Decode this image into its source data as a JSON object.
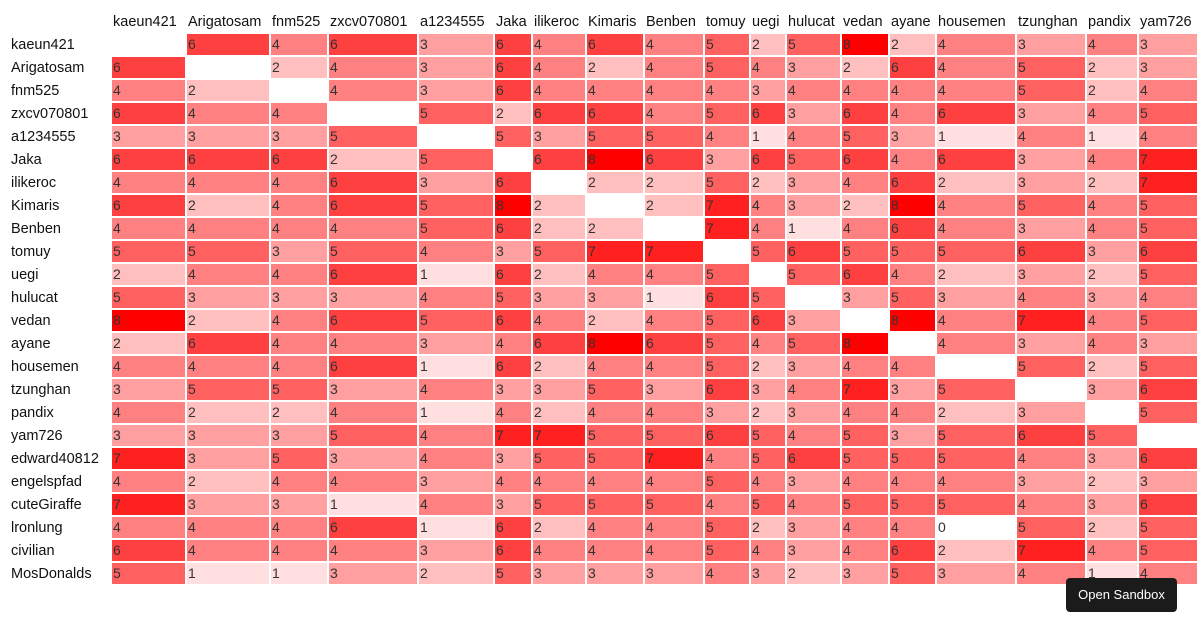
{
  "chart_data": {
    "type": "heatmap",
    "columns": [
      "kaeun421",
      "Arigatosam",
      "fnm525",
      "zxcv070801",
      "a1234555",
      "Jaka",
      "ilikeroc",
      "Kimaris",
      "Benben",
      "tomuy",
      "uegi",
      "hulucat",
      "vedan",
      "ayane",
      "housemen",
      "tzunghan",
      "pandix",
      "yam726"
    ],
    "rows": [
      "kaeun421",
      "Arigatosam",
      "fnm525",
      "zxcv070801",
      "a1234555",
      "Jaka",
      "ilikeroc",
      "Kimaris",
      "Benben",
      "tomuy",
      "uegi",
      "hulucat",
      "vedan",
      "ayane",
      "housemen",
      "tzunghan",
      "pandix",
      "yam726",
      "edward40812",
      "engelspfad",
      "cuteGiraffe",
      "lronlung",
      "civilian",
      "MosDonalds"
    ],
    "values": [
      [
        null,
        6,
        4,
        6,
        3,
        6,
        4,
        6,
        4,
        5,
        2,
        5,
        8,
        2,
        4,
        3,
        4,
        3
      ],
      [
        6,
        null,
        2,
        4,
        3,
        6,
        4,
        2,
        4,
        5,
        4,
        3,
        2,
        6,
        4,
        5,
        2,
        3
      ],
      [
        4,
        2,
        null,
        4,
        3,
        6,
        4,
        4,
        4,
        4,
        3,
        4,
        4,
        4,
        4,
        5,
        2,
        4
      ],
      [
        6,
        4,
        4,
        null,
        5,
        2,
        6,
        6,
        4,
        5,
        6,
        3,
        6,
        4,
        6,
        3,
        4,
        5
      ],
      [
        3,
        3,
        3,
        5,
        null,
        5,
        3,
        5,
        5,
        4,
        1,
        4,
        5,
        3,
        1,
        4,
        1,
        4
      ],
      [
        6,
        6,
        6,
        2,
        5,
        null,
        6,
        8,
        6,
        3,
        6,
        5,
        6,
        4,
        6,
        3,
        4,
        7
      ],
      [
        4,
        4,
        4,
        6,
        3,
        6,
        null,
        2,
        2,
        5,
        2,
        3,
        4,
        6,
        2,
        3,
        2,
        7
      ],
      [
        6,
        2,
        4,
        6,
        5,
        8,
        2,
        null,
        2,
        7,
        4,
        3,
        2,
        8,
        4,
        5,
        4,
        5
      ],
      [
        4,
        4,
        4,
        4,
        5,
        6,
        2,
        2,
        null,
        7,
        4,
        1,
        4,
        6,
        4,
        3,
        4,
        5
      ],
      [
        5,
        5,
        3,
        5,
        4,
        3,
        5,
        7,
        7,
        null,
        5,
        6,
        5,
        5,
        5,
        6,
        3,
        6
      ],
      [
        2,
        4,
        4,
        6,
        1,
        6,
        2,
        4,
        4,
        5,
        null,
        5,
        6,
        4,
        2,
        3,
        2,
        5
      ],
      [
        5,
        3,
        3,
        3,
        4,
        5,
        3,
        3,
        1,
        6,
        5,
        null,
        3,
        5,
        3,
        4,
        3,
        4
      ],
      [
        8,
        2,
        4,
        6,
        5,
        6,
        4,
        2,
        4,
        5,
        6,
        3,
        null,
        8,
        4,
        7,
        4,
        5
      ],
      [
        2,
        6,
        4,
        4,
        3,
        4,
        6,
        8,
        6,
        5,
        4,
        5,
        8,
        null,
        4,
        3,
        4,
        3
      ],
      [
        4,
        4,
        4,
        6,
        1,
        6,
        2,
        4,
        4,
        5,
        2,
        3,
        4,
        4,
        null,
        5,
        2,
        5
      ],
      [
        3,
        5,
        5,
        3,
        4,
        3,
        3,
        5,
        3,
        6,
        3,
        4,
        7,
        3,
        5,
        null,
        3,
        6
      ],
      [
        4,
        2,
        2,
        4,
        1,
        4,
        2,
        4,
        4,
        3,
        2,
        3,
        4,
        4,
        2,
        3,
        null,
        5
      ],
      [
        3,
        3,
        3,
        5,
        4,
        7,
        7,
        5,
        5,
        6,
        5,
        4,
        5,
        3,
        5,
        6,
        5,
        null
      ],
      [
        7,
        3,
        5,
        3,
        4,
        3,
        5,
        5,
        7,
        4,
        5,
        6,
        5,
        5,
        5,
        4,
        3,
        6
      ],
      [
        4,
        2,
        4,
        4,
        3,
        4,
        4,
        4,
        4,
        5,
        4,
        3,
        4,
        4,
        4,
        3,
        2,
        3
      ],
      [
        7,
        3,
        3,
        1,
        4,
        3,
        5,
        5,
        5,
        4,
        5,
        4,
        5,
        5,
        5,
        4,
        3,
        6
      ],
      [
        4,
        4,
        4,
        6,
        1,
        6,
        2,
        4,
        4,
        5,
        2,
        3,
        4,
        4,
        0,
        5,
        2,
        5
      ],
      [
        6,
        4,
        4,
        4,
        3,
        6,
        4,
        4,
        4,
        5,
        4,
        3,
        4,
        6,
        2,
        7,
        4,
        5
      ],
      [
        5,
        1,
        1,
        3,
        2,
        5,
        3,
        3,
        3,
        4,
        3,
        2,
        3,
        5,
        3,
        4,
        1,
        4
      ]
    ],
    "color_scale": {
      "low": "#ffffff",
      "high": "#ff0000",
      "max_value": 8
    }
  },
  "sandbox_button": {
    "label": "Open Sandbox"
  }
}
